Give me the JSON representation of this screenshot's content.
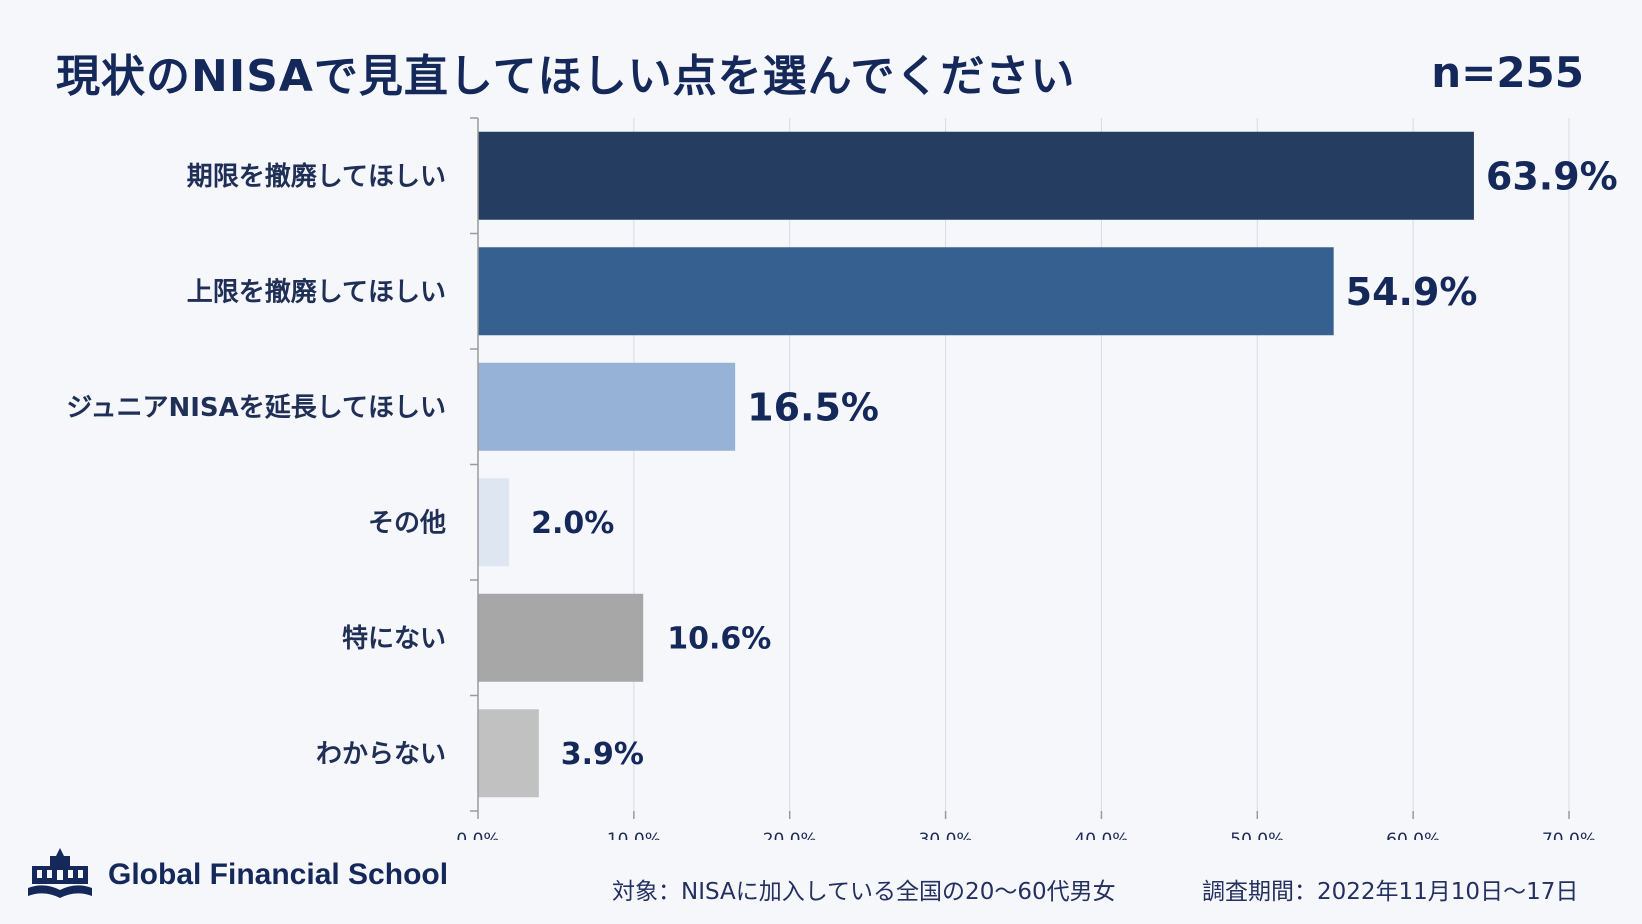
{
  "title": "現状のNISAで見直してほしい点を選んでください",
  "sample_size": "n=255",
  "chart_data": {
    "type": "bar",
    "orientation": "horizontal",
    "categories": [
      "期限を撤廃してほしい",
      "上限を撤廃してほしい",
      "ジュニアNISAを延長してほしい",
      "その他",
      "特にない",
      "わからない"
    ],
    "values": [
      63.9,
      54.9,
      16.5,
      2.0,
      10.6,
      3.9
    ],
    "value_labels": [
      "63.9%",
      "54.9%",
      "16.5%",
      "2.0%",
      "10.6%",
      "3.9%"
    ],
    "colors": [
      "#253d61",
      "#36608f",
      "#96b2d7",
      "#dde6f1",
      "#a7a7a7",
      "#c1c1c1"
    ],
    "xlim": [
      0,
      70
    ],
    "x_ticks": [
      0,
      10,
      20,
      30,
      40,
      50,
      60,
      70
    ],
    "x_tick_labels": [
      "0.0%",
      "10.0%",
      "20.0%",
      "30.0%",
      "40.0%",
      "50.0%",
      "60.0%",
      "70.0%"
    ],
    "grid": true
  },
  "footer": {
    "brand": "Global Financial School",
    "target": "対象：NISAに加入している全国の20～60代男女",
    "period": "調査期間：2022年11月10日～17日"
  }
}
